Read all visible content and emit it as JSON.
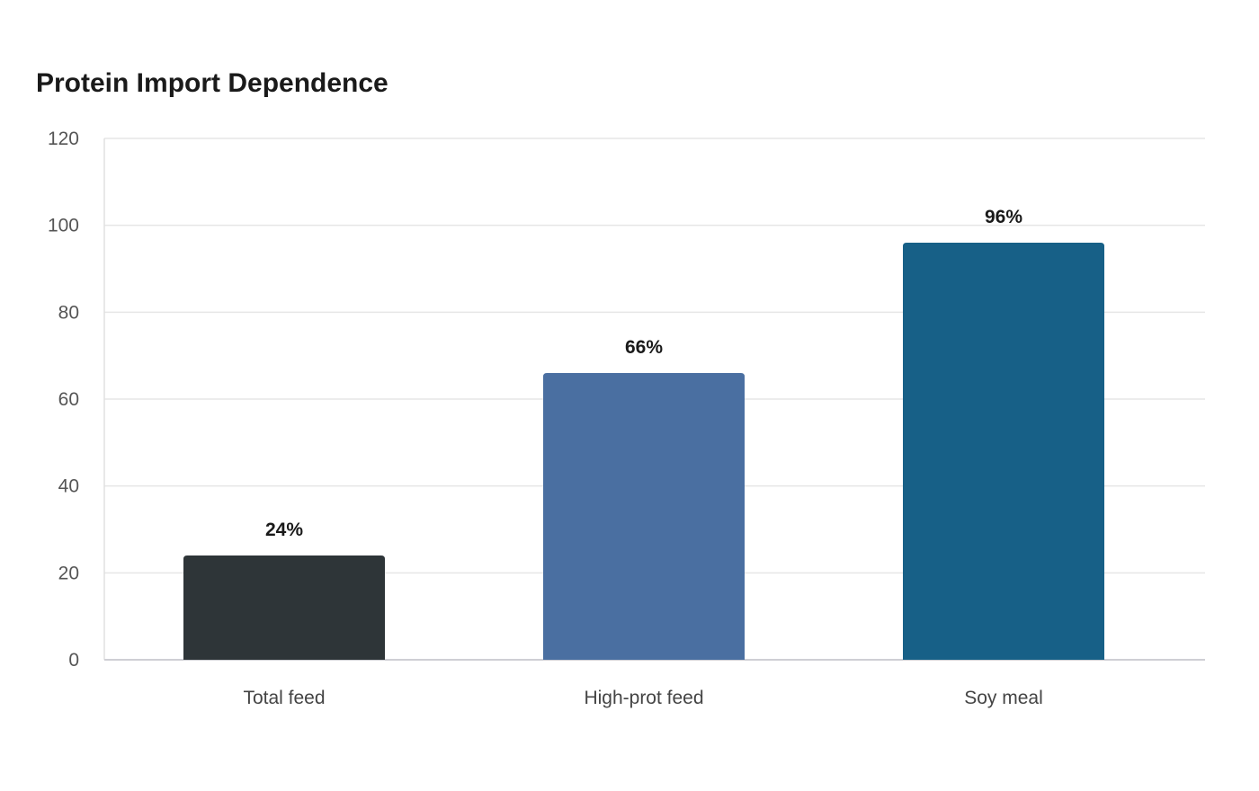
{
  "chart_data": {
    "type": "bar",
    "title": "Protein Import Dependence",
    "xlabel": "",
    "ylabel": "",
    "categories": [
      "Total feed",
      "High-prot feed",
      "Soy meal"
    ],
    "values": [
      24,
      66,
      96
    ],
    "data_labels": [
      "24%",
      "66%",
      "96%"
    ],
    "colors": [
      "#2e3538",
      "#4a6fa1",
      "#176087"
    ],
    "ylim": [
      0,
      120
    ],
    "yticks": [
      0,
      20,
      40,
      60,
      80,
      100,
      120
    ],
    "grid": true,
    "legend": "none"
  }
}
